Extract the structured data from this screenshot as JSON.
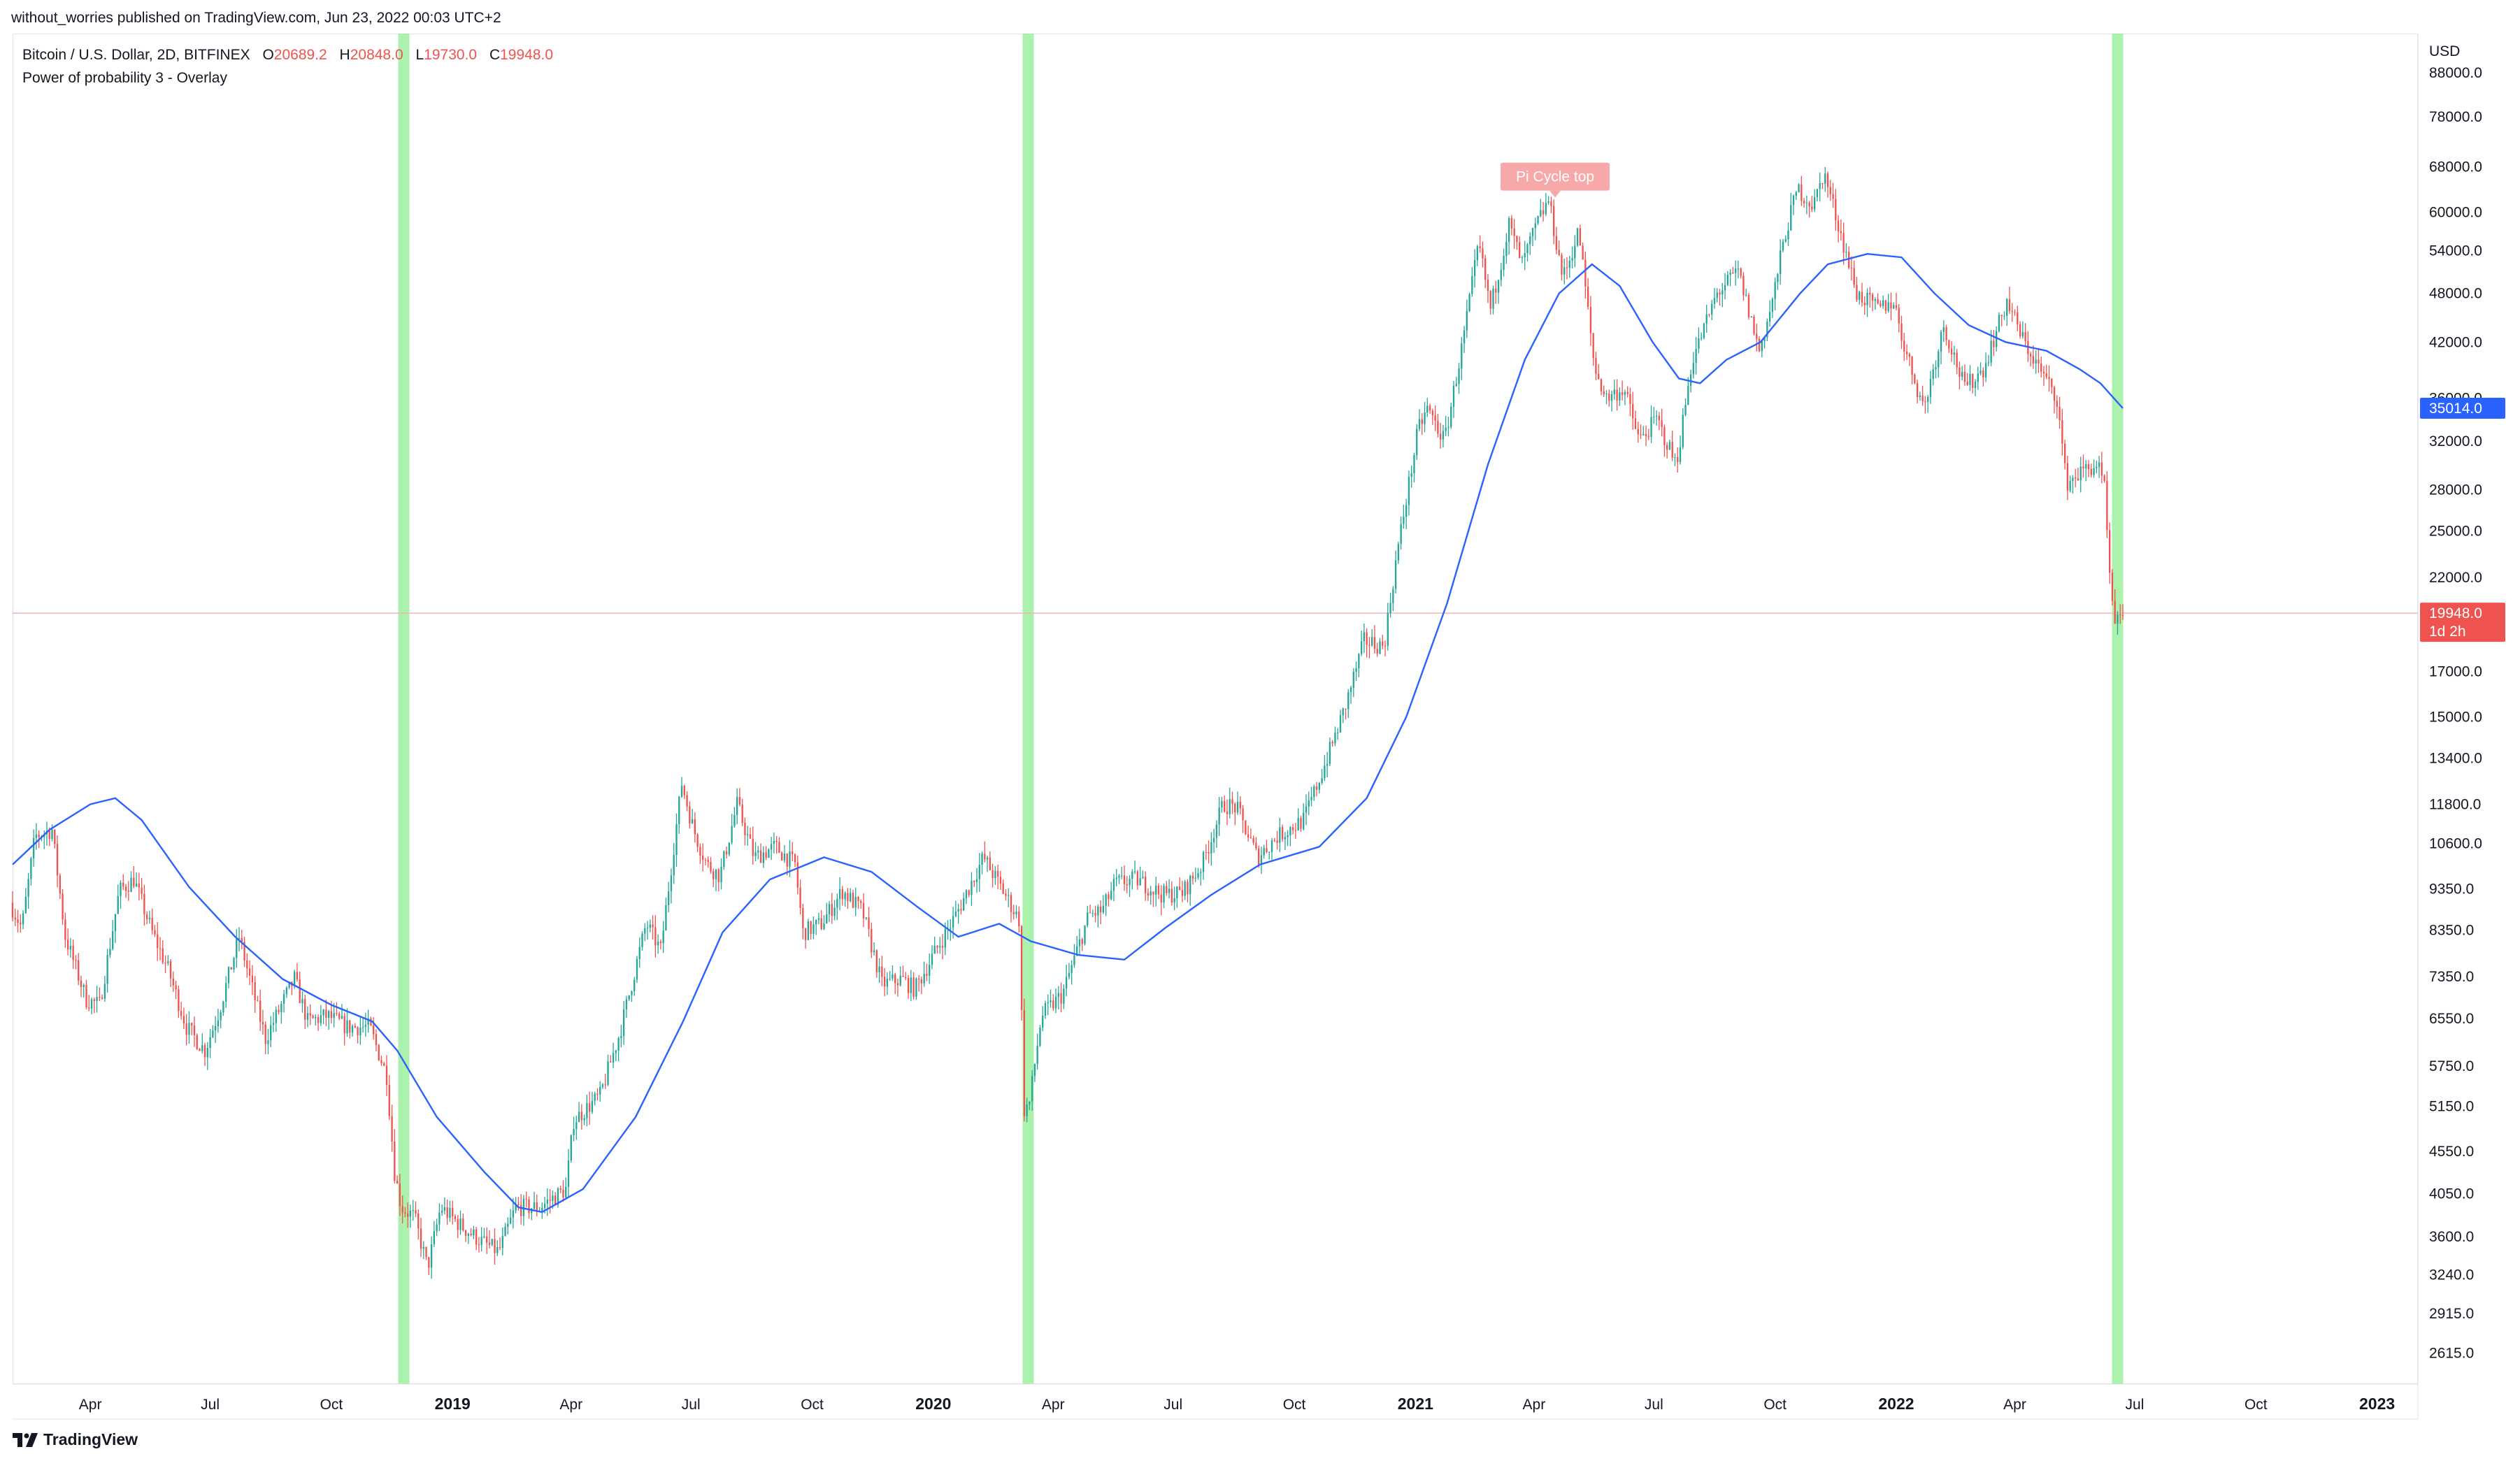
{
  "header": {
    "publish_line": "without_worries published on TradingView.com, Jun 23, 2022 00:03 UTC+2"
  },
  "legend": {
    "symbol": "Bitcoin / U.S. Dollar, 2D, BITFINEX",
    "o_label": "O",
    "o_value": "20689.2",
    "h_label": "H",
    "h_value": "20848.0",
    "l_label": "L",
    "l_value": "19730.0",
    "c_label": "C",
    "c_value": "19948.0",
    "indicator": "Power of probability 3 - Overlay"
  },
  "footer": {
    "brand": "TradingView"
  },
  "colors": {
    "up": "#26a69a",
    "down": "#ef5350",
    "ma": "#2962ff",
    "band": "#90ee90",
    "ma_label": "#2962ff",
    "last_label": "#ef5350",
    "annotation": "#f7a8a8"
  },
  "chart_data": {
    "type": "candlestick",
    "scale": "log",
    "currency": "USD",
    "title": "Bitcoin / U.S. Dollar, 2D, BITFINEX",
    "xlabel": "",
    "ylabel": "USD",
    "x_range": [
      "2018-02-01",
      "2023-02-01"
    ],
    "ylim": [
      2400,
      98000
    ],
    "y_ticks": [
      "88000.0",
      "78000.0",
      "68000.0",
      "60000.0",
      "54000.0",
      "48000.0",
      "42000.0",
      "36000.0",
      "32000.0",
      "28000.0",
      "25000.0",
      "22000.0",
      "17000.0",
      "15000.0",
      "13400.0",
      "11800.0",
      "10600.0",
      "9350.0",
      "8350.0",
      "7350.0",
      "6550.0",
      "5750.0",
      "5150.0",
      "4550.0",
      "4050.0",
      "3600.0",
      "3240.0",
      "2915.0",
      "2615.0"
    ],
    "x_ticks": [
      {
        "label": "Apr",
        "date": "2018-04-01",
        "bold": false
      },
      {
        "label": "Jul",
        "date": "2018-07-01",
        "bold": false
      },
      {
        "label": "Oct",
        "date": "2018-10-01",
        "bold": false
      },
      {
        "label": "2019",
        "date": "2019-01-01",
        "bold": true
      },
      {
        "label": "Apr",
        "date": "2019-04-01",
        "bold": false
      },
      {
        "label": "Jul",
        "date": "2019-07-01",
        "bold": false
      },
      {
        "label": "Oct",
        "date": "2019-10-01",
        "bold": false
      },
      {
        "label": "2020",
        "date": "2020-01-01",
        "bold": true
      },
      {
        "label": "Apr",
        "date": "2020-04-01",
        "bold": false
      },
      {
        "label": "Jul",
        "date": "2020-07-01",
        "bold": false
      },
      {
        "label": "Oct",
        "date": "2020-10-01",
        "bold": false
      },
      {
        "label": "2021",
        "date": "2021-01-01",
        "bold": true
      },
      {
        "label": "Apr",
        "date": "2021-04-01",
        "bold": false
      },
      {
        "label": "Jul",
        "date": "2021-07-01",
        "bold": false
      },
      {
        "label": "Oct",
        "date": "2021-10-01",
        "bold": false
      },
      {
        "label": "2022",
        "date": "2022-01-01",
        "bold": true
      },
      {
        "label": "Apr",
        "date": "2022-04-01",
        "bold": false
      },
      {
        "label": "Jul",
        "date": "2022-07-01",
        "bold": false
      },
      {
        "label": "Oct",
        "date": "2022-10-01",
        "bold": false
      },
      {
        "label": "2023",
        "date": "2023-01-01",
        "bold": true
      }
    ],
    "highlight_bands": [
      {
        "date": "2018-11-25"
      },
      {
        "date": "2020-03-13"
      },
      {
        "date": "2022-06-18"
      }
    ],
    "price_path": [
      [
        "2018-02-01",
        9000
      ],
      [
        "2018-02-10",
        8400
      ],
      [
        "2018-02-20",
        10800
      ],
      [
        "2018-03-05",
        11000
      ],
      [
        "2018-03-15",
        8200
      ],
      [
        "2018-03-31",
        6900
      ],
      [
        "2018-04-10",
        6800
      ],
      [
        "2018-04-25",
        9300
      ],
      [
        "2018-05-06",
        9600
      ],
      [
        "2018-05-20",
        8300
      ],
      [
        "2018-06-01",
        7500
      ],
      [
        "2018-06-15",
        6400
      ],
      [
        "2018-06-29",
        6000
      ],
      [
        "2018-07-10",
        6700
      ],
      [
        "2018-07-25",
        8200
      ],
      [
        "2018-08-05",
        7000
      ],
      [
        "2018-08-14",
        6200
      ],
      [
        "2018-08-30",
        7000
      ],
      [
        "2018-09-05",
        7300
      ],
      [
        "2018-09-15",
        6500
      ],
      [
        "2018-09-30",
        6600
      ],
      [
        "2018-10-15",
        6400
      ],
      [
        "2018-11-01",
        6400
      ],
      [
        "2018-11-14",
        5600
      ],
      [
        "2018-11-20",
        4300
      ],
      [
        "2018-11-25",
        3900
      ],
      [
        "2018-12-05",
        3800
      ],
      [
        "2018-12-15",
        3300
      ],
      [
        "2018-12-25",
        3900
      ],
      [
        "2019-01-10",
        3700
      ],
      [
        "2019-01-25",
        3550
      ],
      [
        "2019-02-07",
        3450
      ],
      [
        "2019-02-20",
        3900
      ],
      [
        "2019-03-10",
        3900
      ],
      [
        "2019-03-30",
        4100
      ],
      [
        "2019-04-05",
        4950
      ],
      [
        "2019-04-25",
        5300
      ],
      [
        "2019-05-10",
        6300
      ],
      [
        "2019-05-30",
        8500
      ],
      [
        "2019-06-10",
        7900
      ],
      [
        "2019-06-26",
        12500
      ],
      [
        "2019-07-05",
        11000
      ],
      [
        "2019-07-15",
        10000
      ],
      [
        "2019-07-25",
        9700
      ],
      [
        "2019-08-07",
        11800
      ],
      [
        "2019-08-20",
        10200
      ],
      [
        "2019-09-05",
        10500
      ],
      [
        "2019-09-20",
        10000
      ],
      [
        "2019-09-26",
        8300
      ],
      [
        "2019-10-10",
        8500
      ],
      [
        "2019-10-26",
        9300
      ],
      [
        "2019-11-10",
        8800
      ],
      [
        "2019-11-25",
        7200
      ],
      [
        "2019-12-10",
        7300
      ],
      [
        "2019-12-20",
        7100
      ],
      [
        "2020-01-05",
        7900
      ],
      [
        "2020-01-20",
        8700
      ],
      [
        "2020-02-10",
        10200
      ],
      [
        "2020-02-25",
        9300
      ],
      [
        "2020-03-08",
        8600
      ],
      [
        "2020-03-12",
        5100
      ],
      [
        "2020-03-16",
        5200
      ],
      [
        "2020-03-25",
        6600
      ],
      [
        "2020-04-10",
        7000
      ],
      [
        "2020-04-30",
        8700
      ],
      [
        "2020-05-10",
        8800
      ],
      [
        "2020-05-20",
        9500
      ],
      [
        "2020-06-05",
        9600
      ],
      [
        "2020-06-25",
        9200
      ],
      [
        "2020-07-10",
        9250
      ],
      [
        "2020-07-25",
        10000
      ],
      [
        "2020-08-10",
        11800
      ],
      [
        "2020-08-20",
        11700
      ],
      [
        "2020-09-05",
        10200
      ],
      [
        "2020-09-20",
        10800
      ],
      [
        "2020-10-10",
        11300
      ],
      [
        "2020-10-25",
        13000
      ],
      [
        "2020-11-10",
        15300
      ],
      [
        "2020-11-25",
        18500
      ],
      [
        "2020-12-10",
        18200
      ],
      [
        "2020-12-20",
        23500
      ],
      [
        "2021-01-05",
        33000
      ],
      [
        "2021-01-12",
        35000
      ],
      [
        "2021-01-25",
        32000
      ],
      [
        "2021-02-08",
        42000
      ],
      [
        "2021-02-20",
        55000
      ],
      [
        "2021-03-01",
        46000
      ],
      [
        "2021-03-15",
        58000
      ],
      [
        "2021-03-25",
        52000
      ],
      [
        "2021-04-05",
        58000
      ],
      [
        "2021-04-14",
        62000
      ],
      [
        "2021-04-25",
        50000
      ],
      [
        "2021-05-07",
        57000
      ],
      [
        "2021-05-19",
        39000
      ],
      [
        "2021-05-28",
        36000
      ],
      [
        "2021-06-10",
        37000
      ],
      [
        "2021-06-22",
        32000
      ],
      [
        "2021-07-05",
        34000
      ],
      [
        "2021-07-20",
        30000
      ],
      [
        "2021-08-01",
        40000
      ],
      [
        "2021-08-20",
        48000
      ],
      [
        "2021-09-05",
        51000
      ],
      [
        "2021-09-21",
        41000
      ],
      [
        "2021-10-01",
        47000
      ],
      [
        "2021-10-10",
        56000
      ],
      [
        "2021-10-20",
        64000
      ],
      [
        "2021-11-01",
        61000
      ],
      [
        "2021-11-09",
        67000
      ],
      [
        "2021-11-20",
        58000
      ],
      [
        "2021-12-04",
        48000
      ],
      [
        "2021-12-20",
        46000
      ],
      [
        "2022-01-01",
        47000
      ],
      [
        "2022-01-10",
        41000
      ],
      [
        "2022-01-24",
        35000
      ],
      [
        "2022-02-08",
        44000
      ],
      [
        "2022-02-24",
        37000
      ],
      [
        "2022-03-10",
        39000
      ],
      [
        "2022-03-28",
        47000
      ],
      [
        "2022-04-10",
        42000
      ],
      [
        "2022-04-26",
        38000
      ],
      [
        "2022-05-05",
        36000
      ],
      [
        "2022-05-12",
        28500
      ],
      [
        "2022-05-25",
        29500
      ],
      [
        "2022-06-05",
        30000
      ],
      [
        "2022-06-10",
        28000
      ],
      [
        "2022-06-14",
        22000
      ],
      [
        "2022-06-18",
        19000
      ],
      [
        "2022-06-22",
        19948
      ]
    ],
    "ma_series": {
      "name": "MA",
      "points": [
        [
          "2018-02-01",
          10000
        ],
        [
          "2018-03-01",
          11000
        ],
        [
          "2018-04-01",
          11800
        ],
        [
          "2018-04-20",
          12000
        ],
        [
          "2018-05-10",
          11300
        ],
        [
          "2018-06-15",
          9400
        ],
        [
          "2018-07-20",
          8200
        ],
        [
          "2018-08-25",
          7300
        ],
        [
          "2018-10-01",
          6800
        ],
        [
          "2018-11-01",
          6500
        ],
        [
          "2018-11-20",
          6000
        ],
        [
          "2018-12-20",
          5000
        ],
        [
          "2019-01-25",
          4300
        ],
        [
          "2019-02-20",
          3900
        ],
        [
          "2019-03-10",
          3850
        ],
        [
          "2019-04-10",
          4100
        ],
        [
          "2019-05-20",
          5000
        ],
        [
          "2019-06-25",
          6500
        ],
        [
          "2019-07-25",
          8300
        ],
        [
          "2019-08-30",
          9600
        ],
        [
          "2019-10-10",
          10200
        ],
        [
          "2019-11-15",
          9800
        ],
        [
          "2019-12-20",
          8900
        ],
        [
          "2020-01-20",
          8200
        ],
        [
          "2020-02-20",
          8500
        ],
        [
          "2020-03-15",
          8100
        ],
        [
          "2020-04-20",
          7800
        ],
        [
          "2020-05-25",
          7700
        ],
        [
          "2020-06-25",
          8400
        ],
        [
          "2020-07-30",
          9200
        ],
        [
          "2020-09-05",
          10000
        ],
        [
          "2020-10-20",
          10500
        ],
        [
          "2020-11-25",
          12000
        ],
        [
          "2020-12-25",
          15000
        ],
        [
          "2021-01-25",
          20500
        ],
        [
          "2021-02-25",
          30000
        ],
        [
          "2021-03-25",
          40000
        ],
        [
          "2021-04-20",
          48000
        ],
        [
          "2021-05-15",
          52000
        ],
        [
          "2021-06-05",
          49000
        ],
        [
          "2021-06-30",
          42000
        ],
        [
          "2021-07-20",
          38000
        ],
        [
          "2021-08-05",
          37500
        ],
        [
          "2021-08-25",
          40000
        ],
        [
          "2021-09-20",
          42000
        ],
        [
          "2021-10-20",
          48000
        ],
        [
          "2021-11-10",
          52000
        ],
        [
          "2021-12-10",
          53500
        ],
        [
          "2022-01-05",
          53000
        ],
        [
          "2022-01-30",
          48000
        ],
        [
          "2022-02-25",
          44000
        ],
        [
          "2022-03-25",
          42000
        ],
        [
          "2022-04-25",
          41000
        ],
        [
          "2022-05-20",
          39000
        ],
        [
          "2022-06-05",
          37500
        ],
        [
          "2022-06-22",
          35014
        ]
      ]
    },
    "annotations": [
      {
        "text": "Pi Cycle top",
        "date": "2021-04-17",
        "value": 61500
      }
    ],
    "last_price": {
      "value": 19948,
      "label": "19948.0",
      "countdown": "1d 2h"
    },
    "ma_last": {
      "value": 35014,
      "label": "35014.0"
    }
  }
}
